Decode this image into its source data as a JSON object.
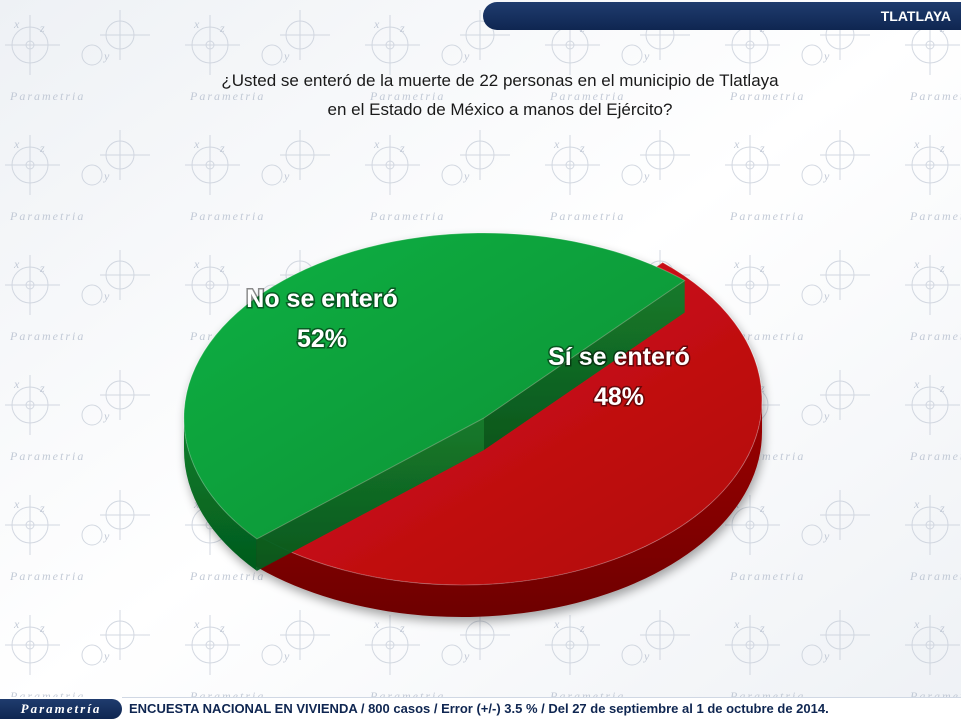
{
  "header": {
    "tag": "TLATLAYA",
    "question_line1": "¿Usted se enteró de la muerte de 22 personas en el municipio de Tlatlaya",
    "question_line2": "en el Estado de México a manos del Ejército?"
  },
  "chart_data": {
    "type": "pie",
    "style": "3d-exploded",
    "slices": [
      {
        "label": "No se enteró",
        "value": 52,
        "display": "52%",
        "color": "#c8080c"
      },
      {
        "label": "Sí se enteró",
        "value": 48,
        "display": "48%",
        "color": "#0fa33c"
      }
    ]
  },
  "background": {
    "watermark_text": "Parametria"
  },
  "footer": {
    "brand": "Parametría",
    "text": "ENCUESTA NACIONAL EN VIVIENDA / 800 casos / Error (+/-) 3.5 % / Del 27 de septiembre al 1 de octubre de 2014."
  }
}
